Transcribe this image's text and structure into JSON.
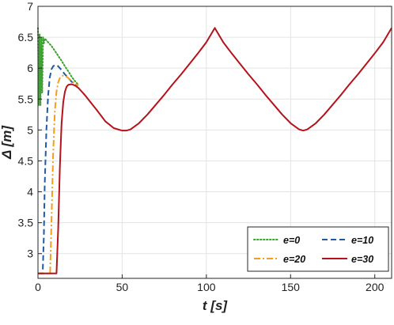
{
  "chart_data": {
    "type": "line",
    "title": "",
    "xlabel": "t [s]",
    "ylabel": "Δ [m]",
    "xlim": [
      0,
      210
    ],
    "ylim": [
      2.6,
      7
    ],
    "xticks": [
      0,
      50,
      100,
      150,
      200
    ],
    "yticks": [
      3,
      3.5,
      4,
      4.5,
      5,
      5.5,
      6,
      6.5,
      7
    ],
    "xtick_labels": [
      "0",
      "50",
      "100",
      "150",
      "200"
    ],
    "ytick_labels": [
      "3",
      "3.5",
      "4",
      "4.5",
      "5",
      "5.5",
      "6",
      "6.5",
      "7"
    ],
    "grid": true,
    "legend_position": "bottom-right",
    "legend_columns": 2,
    "series": [
      {
        "name": "e=0",
        "color": "#3aa02e",
        "style": "dotted",
        "x": [
          0,
          0.5,
          1,
          1.5,
          2,
          2.5,
          3,
          3.5,
          4,
          5,
          6,
          8,
          10,
          12,
          14,
          16,
          18,
          20,
          22,
          24
        ],
        "y": [
          6.65,
          5.4,
          6.55,
          5.4,
          6.5,
          5.6,
          6.5,
          6.4,
          6.48,
          6.45,
          6.42,
          6.36,
          6.28,
          6.2,
          6.12,
          6.03,
          5.95,
          5.86,
          5.79,
          5.73
        ]
      },
      {
        "name": "e=10",
        "color": "#1f5aa6",
        "style": "dashed",
        "x": [
          0,
          1,
          2,
          2.8,
          3.5,
          4,
          5,
          6,
          7,
          8,
          9,
          10,
          11,
          12,
          13,
          14,
          16,
          18,
          20,
          22,
          24
        ],
        "y": [
          2.68,
          2.68,
          2.68,
          2.68,
          3.3,
          4.1,
          5.0,
          5.55,
          5.85,
          5.98,
          6.03,
          6.05,
          6.05,
          6.03,
          6.0,
          5.97,
          5.9,
          5.84,
          5.78,
          5.74,
          5.72
        ]
      },
      {
        "name": "e=20",
        "color": "#f59c1a",
        "style": "dashdot",
        "x": [
          0,
          2,
          4,
          6,
          7.2,
          8,
          9,
          10,
          11,
          12,
          13,
          14,
          15,
          16,
          17,
          18,
          20,
          22,
          24
        ],
        "y": [
          2.68,
          2.68,
          2.68,
          2.68,
          2.68,
          3.5,
          4.6,
          5.3,
          5.62,
          5.77,
          5.84,
          5.87,
          5.88,
          5.87,
          5.86,
          5.84,
          5.79,
          5.75,
          5.72
        ]
      },
      {
        "name": "e=30",
        "color": "#b5121b",
        "style": "solid",
        "x": [
          0,
          4,
          8,
          10,
          11,
          12,
          13,
          14,
          15,
          16,
          17,
          18,
          20,
          22,
          24,
          26,
          28,
          30,
          35,
          40,
          45,
          50,
          52.5,
          55,
          60,
          65,
          70,
          75,
          80,
          85,
          90,
          95,
          100,
          105,
          110,
          115,
          120,
          125,
          130,
          135,
          140,
          145,
          150,
          155,
          157.5,
          160,
          165,
          170,
          175,
          180,
          185,
          190,
          195,
          200,
          205,
          210
        ],
        "y": [
          2.68,
          2.68,
          2.68,
          2.68,
          2.68,
          3.4,
          4.4,
          5.1,
          5.45,
          5.62,
          5.7,
          5.73,
          5.74,
          5.72,
          5.68,
          5.62,
          5.56,
          5.49,
          5.32,
          5.14,
          5.03,
          4.99,
          4.99,
          5.01,
          5.11,
          5.25,
          5.41,
          5.57,
          5.74,
          5.9,
          6.07,
          6.24,
          6.42,
          6.65,
          6.42,
          6.24,
          6.07,
          5.9,
          5.74,
          5.57,
          5.41,
          5.25,
          5.11,
          5.01,
          4.99,
          5.01,
          5.11,
          5.25,
          5.41,
          5.57,
          5.74,
          5.9,
          6.07,
          6.24,
          6.42,
          6.65
        ]
      }
    ]
  }
}
